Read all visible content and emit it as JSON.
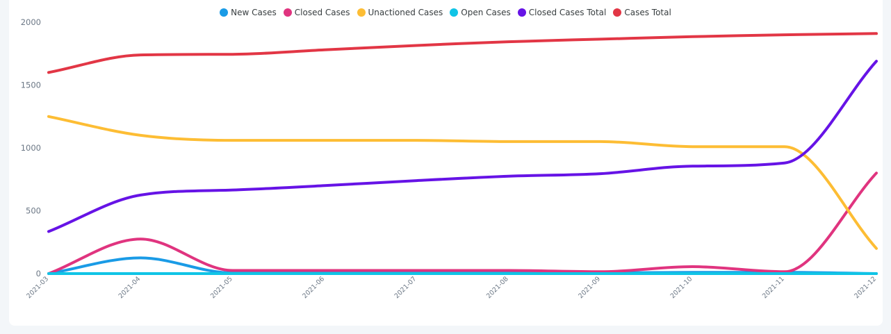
{
  "chart_data": {
    "type": "line",
    "title": "",
    "xlabel": "",
    "ylabel": "",
    "ylim": [
      0,
      2000
    ],
    "yticks": [
      0,
      500,
      1000,
      1500,
      2000
    ],
    "categories": [
      "2021-03",
      "2021-04",
      "2021-05",
      "2021-06",
      "2021-07",
      "2021-08",
      "2021-09",
      "2021-10",
      "2021-11",
      "2021-12"
    ],
    "legend_position": "top-center",
    "series": [
      {
        "name": "New Cases",
        "color": "#1a9be6",
        "values": [
          0,
          125,
          5,
          5,
          5,
          5,
          5,
          10,
          10,
          0
        ]
      },
      {
        "name": "Closed Cases",
        "color": "#e0347f",
        "values": [
          0,
          275,
          25,
          25,
          25,
          25,
          15,
          55,
          15,
          800
        ]
      },
      {
        "name": "Unactioned Cases",
        "color": "#fdbd34",
        "values": [
          1250,
          1100,
          1060,
          1060,
          1060,
          1050,
          1050,
          1010,
          1010,
          200
        ]
      },
      {
        "name": "Open Cases",
        "color": "#10c4e6",
        "values": [
          0,
          0,
          0,
          0,
          0,
          0,
          0,
          0,
          0,
          0
        ]
      },
      {
        "name": "Closed Cases Total",
        "color": "#6613e6",
        "values": [
          335,
          625,
          665,
          700,
          740,
          775,
          795,
          855,
          880,
          1690
        ]
      },
      {
        "name": "Cases Total",
        "color": "#e23645",
        "values": [
          1600,
          1740,
          1745,
          1780,
          1815,
          1845,
          1865,
          1885,
          1900,
          1910
        ]
      }
    ]
  }
}
